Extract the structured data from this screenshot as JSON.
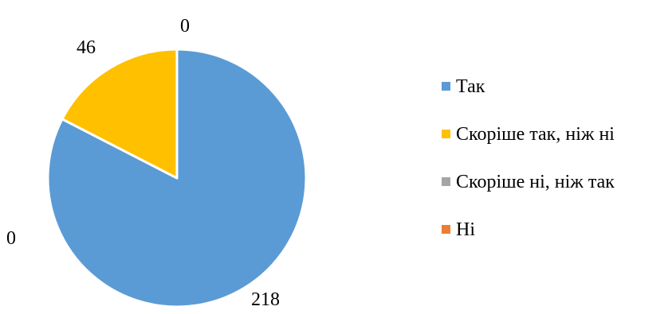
{
  "chart_data": {
    "type": "pie",
    "title": "",
    "categories": [
      "Так",
      "Скоріше так, ніж ні",
      "Скоріше ні, ніж так",
      "Ні"
    ],
    "values": [
      218,
      46,
      0,
      0
    ],
    "colors": [
      "#5B9BD5",
      "#FFC000",
      "#A5A5A5",
      "#ED7D31"
    ],
    "data_labels": [
      "218",
      "46",
      "0",
      "0"
    ],
    "legend_position": "right",
    "start_angle": "12 o'clock",
    "direction": "clockwise"
  }
}
